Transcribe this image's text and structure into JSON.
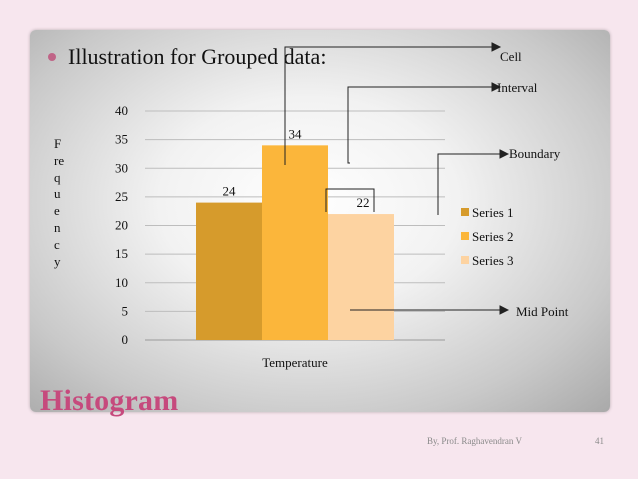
{
  "slide": {
    "bullet": "Illustration for Grouped data:",
    "heading": "Histogram",
    "author": "By, Prof. Raghavendran V",
    "page_number": "41",
    "ylabel_letters": [
      "F",
      "re",
      "q",
      "u",
      "e",
      "n",
      "c",
      "y"
    ]
  },
  "annotations": {
    "cell": "Cell",
    "interval": "Interval",
    "boundary": "Boundary",
    "mid_point": "Mid Point"
  },
  "colors": {
    "series_1": "#d69b2c",
    "series_2": "#fbb63b",
    "series_3": "#fdd3a1",
    "heading": "#c64a7d",
    "bullet": "#c06487"
  },
  "chart_data": {
    "type": "bar",
    "categories": [
      ""
    ],
    "xlabel": "Temperature",
    "ylabel": "",
    "ylim": [
      0,
      40
    ],
    "yticks": [
      0,
      5,
      10,
      15,
      20,
      25,
      30,
      35,
      40
    ],
    "grid": true,
    "legend": "right",
    "series": [
      {
        "name": "Series 1",
        "values": [
          24
        ],
        "color": "#d69b2c"
      },
      {
        "name": "Series 2",
        "values": [
          34
        ],
        "color": "#fbb63b"
      },
      {
        "name": "Series 3",
        "values": [
          22
        ],
        "color": "#fdd3a1"
      }
    ]
  }
}
